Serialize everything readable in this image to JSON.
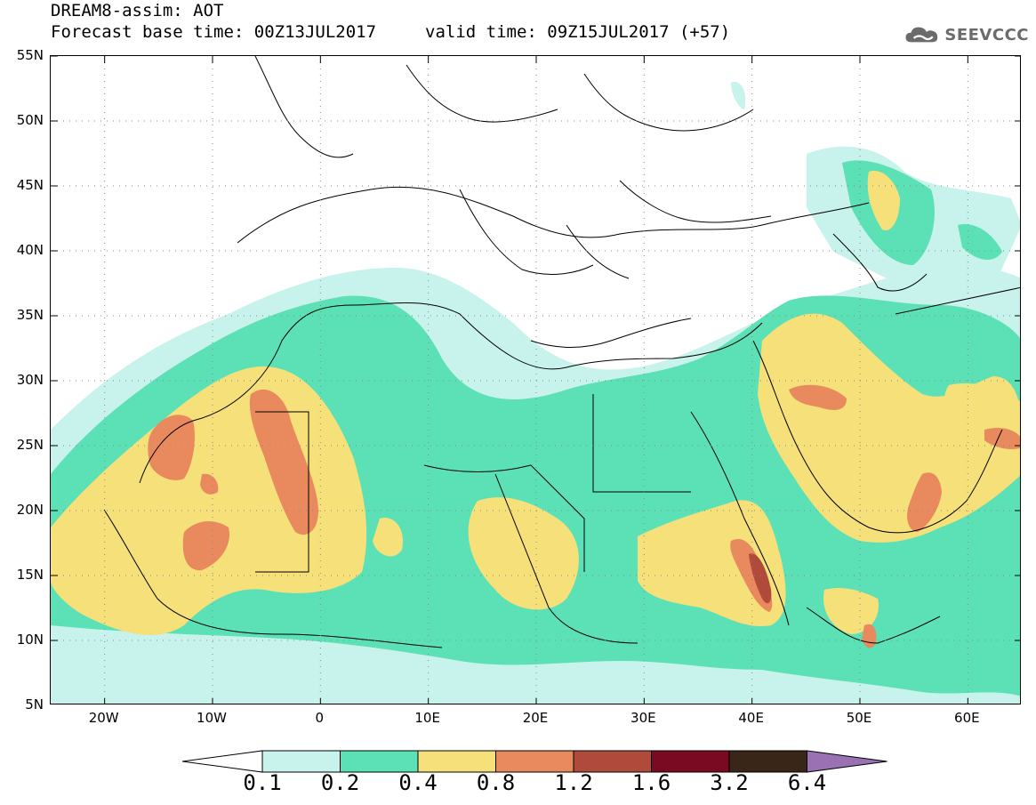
{
  "header": {
    "title_line1": "DREAM8-assim: AOT",
    "title_line2": "Forecast base time: 00Z13JUL2017",
    "valid_time": "valid time: 09Z15JUL2017 (+57)"
  },
  "logo": {
    "text": "SEEVCCC",
    "icon": "cloud-icon"
  },
  "map": {
    "lat_labels": [
      "55N",
      "50N",
      "45N",
      "40N",
      "35N",
      "30N",
      "25N",
      "20N",
      "15N",
      "10N",
      "5N"
    ],
    "lon_labels": [
      "20W",
      "10W",
      "0",
      "10E",
      "20E",
      "30E",
      "40E",
      "50E",
      "60E"
    ],
    "grid": "dotted"
  },
  "legend": {
    "levels": [
      "0.1",
      "0.2",
      "0.4",
      "0.8",
      "1.2",
      "1.6",
      "3.2",
      "6.4"
    ],
    "colors": [
      "#c8f2ec",
      "#5ce0b6",
      "#f5e07a",
      "#e88a5e",
      "#b04a3a",
      "#7a0a22",
      "#3a2618",
      "#9a72b4"
    ],
    "under_color": "#ffffff",
    "over_color": "#9a72b4"
  }
}
